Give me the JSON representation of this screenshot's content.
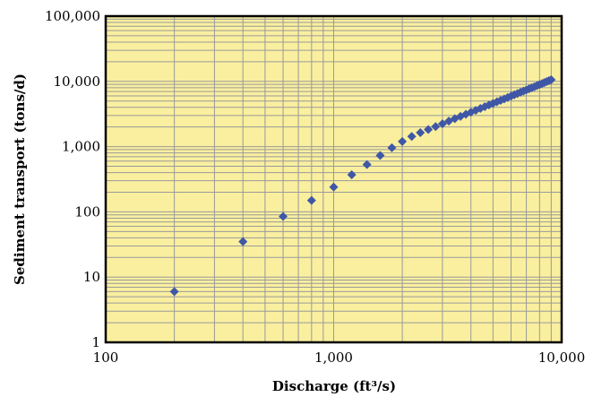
{
  "chart_data": {
    "type": "scatter",
    "xlabel": "Discharge (ft³/s)",
    "ylabel": "Sediment transport (tons/d)",
    "xscale": "log",
    "yscale": "log",
    "xlim": [
      100,
      10000
    ],
    "ylim": [
      1,
      100000
    ],
    "grid": true,
    "legend": "none",
    "colors": {
      "plot_background": "#f9ef9f",
      "grid": "#9a9a9a",
      "marker": "#3f57a6",
      "axes": "#000000"
    },
    "x_ticks": [
      {
        "value": 100,
        "label": "100"
      },
      {
        "value": 1000,
        "label": "1,000"
      },
      {
        "value": 10000,
        "label": "10,000"
      }
    ],
    "y_ticks": [
      {
        "value": 1,
        "label": "1"
      },
      {
        "value": 10,
        "label": "10"
      },
      {
        "value": 100,
        "label": "100"
      },
      {
        "value": 1000,
        "label": "1,000"
      },
      {
        "value": 10000,
        "label": "10,000"
      },
      {
        "value": 100000,
        "label": "100,000"
      }
    ],
    "series": [
      {
        "marker": "diamond",
        "x": [
          200,
          400,
          600,
          800,
          1000,
          1200,
          1400,
          1600,
          1800,
          2000,
          2200,
          2400,
          2600,
          2800,
          3000,
          3200,
          3400,
          3600,
          3800,
          4000,
          4200,
          4400,
          4600,
          4800,
          5000,
          5200,
          5400,
          5600,
          5800,
          6000,
          6200,
          6400,
          6600,
          6800,
          7000,
          7200,
          7400,
          7600,
          7800,
          8000,
          8200,
          8400,
          8600,
          8800,
          9000
        ],
        "y": [
          6,
          35,
          85,
          150,
          240,
          370,
          530,
          730,
          960,
          1200,
          1430,
          1640,
          1830,
          2030,
          2240,
          2460,
          2680,
          2910,
          3130,
          3370,
          3600,
          3850,
          4100,
          4350,
          4600,
          4860,
          5120,
          5390,
          5660,
          5940,
          6220,
          6500,
          6790,
          7090,
          7380,
          7690,
          7990,
          8300,
          8620,
          8940,
          9260,
          9580,
          9920,
          10250,
          10600
        ]
      }
    ]
  }
}
